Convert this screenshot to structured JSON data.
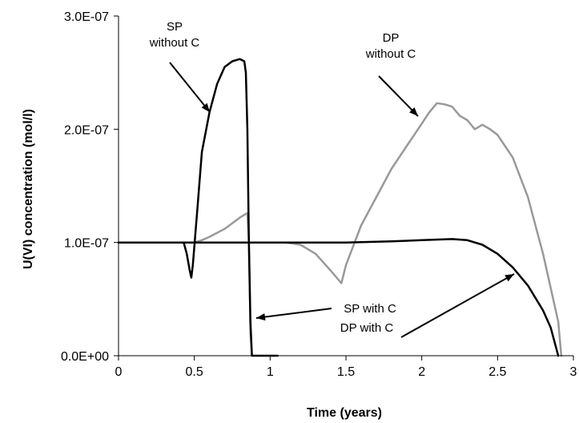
{
  "chart_data": {
    "type": "line",
    "title": "",
    "xlabel": "Time (years)",
    "ylabel": "U(VI) concentration (mol/l)",
    "xlim": [
      0,
      3
    ],
    "ylim": [
      0,
      3e-07
    ],
    "x_ticks": [
      "0",
      "0.5",
      "1",
      "1.5",
      "2",
      "2.5",
      "3"
    ],
    "x_tick_values": [
      0,
      0.5,
      1,
      1.5,
      2,
      2.5,
      3
    ],
    "y_ticks": [
      "0.0E+00",
      "1.0E-07",
      "2.0E-07",
      "3.0E-07"
    ],
    "y_tick_values": [
      0,
      1e-07,
      2e-07,
      3e-07
    ],
    "grid": false,
    "legend": "none",
    "series": [
      {
        "color": "#999999",
        "x": [
          0.0,
          0.5,
          0.55,
          0.6,
          0.7,
          0.8,
          0.85,
          0.86,
          0.865,
          0.87,
          0.88
        ],
        "y": [
          1e-07,
          1e-07,
          1.02e-07,
          1.05e-07,
          1.12e-07,
          1.22e-07,
          1.26e-07,
          1e-07,
          6e-08,
          2e-08,
          0.0
        ]
      },
      {
        "color": "#999999",
        "x": [
          1.1,
          1.2,
          1.3,
          1.4,
          1.47,
          1.5,
          1.6,
          1.7,
          1.8,
          1.9,
          2.0,
          2.05,
          2.1,
          2.15,
          2.2,
          2.25,
          2.3,
          2.35,
          2.4,
          2.45,
          2.5,
          2.6,
          2.7,
          2.8,
          2.9,
          2.92
        ],
        "y": [
          1e-07,
          9.8e-08,
          9e-08,
          7.5e-08,
          6.4e-08,
          8e-08,
          1.15e-07,
          1.4e-07,
          1.65e-07,
          1.85e-07,
          2.05e-07,
          2.15e-07,
          2.23e-07,
          2.22e-07,
          2.2e-07,
          2.12e-07,
          2.08e-07,
          2e-07,
          2.04e-07,
          2e-07,
          1.95e-07,
          1.75e-07,
          1.4e-07,
          9e-08,
          3e-08,
          0.0
        ]
      },
      {
        "color": "#000000",
        "x": [
          0.0,
          0.43,
          0.45,
          0.47,
          0.48,
          0.49,
          0.52,
          0.55,
          0.6,
          0.65,
          0.7,
          0.75,
          0.8,
          0.83,
          0.84,
          0.85,
          0.86,
          0.87,
          0.88,
          1.05
        ],
        "y": [
          1e-07,
          1e-07,
          9e-08,
          7.5e-08,
          6.9e-08,
          8e-08,
          1.3e-07,
          1.8e-07,
          2.15e-07,
          2.4e-07,
          2.55e-07,
          2.6e-07,
          2.62e-07,
          2.6e-07,
          2.5e-07,
          2e-07,
          1e-07,
          3e-08,
          0.0,
          0.0
        ]
      },
      {
        "color": "#000000",
        "x": [
          0.0,
          0.5,
          1.0,
          1.5,
          1.8,
          2.0,
          2.2,
          2.3,
          2.4,
          2.5,
          2.6,
          2.7,
          2.8,
          2.85,
          2.88,
          2.9
        ],
        "y": [
          1e-07,
          1e-07,
          1e-07,
          1e-07,
          1.01e-07,
          1.02e-07,
          1.03e-07,
          1.02e-07,
          9.8e-08,
          9e-08,
          7.8e-08,
          6.2e-08,
          4e-08,
          2.5e-08,
          1e-08,
          0.0
        ]
      }
    ],
    "annotations": [
      {
        "id": "sp-without-c",
        "lines": [
          "SP",
          "without C"
        ]
      },
      {
        "id": "dp-without-c",
        "lines": [
          "DP",
          "without C"
        ]
      },
      {
        "id": "sp-with-c",
        "lines": [
          "SP with C"
        ]
      },
      {
        "id": "dp-with-c",
        "lines": [
          "DP with C"
        ]
      }
    ]
  }
}
